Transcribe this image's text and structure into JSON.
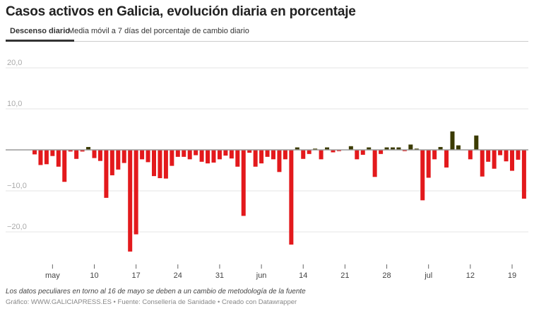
{
  "title": "Casos activos en Galicia, evolución diaria en porcentaje",
  "tabs": [
    {
      "label": "Descenso diario",
      "active": true
    },
    {
      "label": "Media móvil a 7 días del porcentaje de cambio diario",
      "active": false
    }
  ],
  "note": "Los datos peculiares en torno al 16 de mayo se deben a un cambio de metodología de la fuente",
  "footer": "Gráfico: WWW.GALICIAPRESS.ES • Fuente: Consellería de Sanidade • Creado con Datawrapper",
  "colors": {
    "negative": "#e3191c",
    "positive": "#3b3b00",
    "grid": "#e6e6e6",
    "zero": "#999999"
  },
  "chart_data": {
    "type": "bar",
    "title": "Casos activos en Galicia, evolución diaria en porcentaje",
    "ylim": [
      -26.5,
      22
    ],
    "grid": true,
    "y_ticks": [
      {
        "value": 20,
        "label": "20,0"
      },
      {
        "value": 10,
        "label": "10,0"
      },
      {
        "value": -10,
        "label": "−10,0"
      },
      {
        "value": -20,
        "label": "−20,0"
      }
    ],
    "x_ticks": [
      {
        "date": "2020-05-03",
        "label": "may"
      },
      {
        "date": "2020-05-10",
        "label": "10"
      },
      {
        "date": "2020-05-17",
        "label": "17"
      },
      {
        "date": "2020-05-24",
        "label": "24"
      },
      {
        "date": "2020-05-31",
        "label": "31"
      },
      {
        "date": "2020-06-07",
        "label": "jun"
      },
      {
        "date": "2020-06-14",
        "label": "14"
      },
      {
        "date": "2020-06-21",
        "label": "21"
      },
      {
        "date": "2020-06-28",
        "label": "28"
      },
      {
        "date": "2020-07-05",
        "label": "jul"
      },
      {
        "date": "2020-07-12",
        "label": "12"
      },
      {
        "date": "2020-07-19",
        "label": "19"
      }
    ],
    "x_start": "2020-04-30",
    "x_end": "2020-07-21",
    "values": [
      -1.1,
      -3.7,
      -3.5,
      -1.5,
      -4.1,
      -7.8,
      -0.4,
      -2.2,
      -0.4,
      0.7,
      -2.0,
      -2.7,
      -11.7,
      -6.2,
      -4.8,
      -3.2,
      -24.8,
      -20.6,
      -2.3,
      -3.0,
      -6.4,
      -6.9,
      -7.0,
      -3.9,
      -1.7,
      -1.7,
      -2.3,
      -1.3,
      -2.9,
      -3.3,
      -3.1,
      -2.3,
      -1.4,
      -2.1,
      -4.1,
      -16.1,
      -0.7,
      -4.1,
      -3.3,
      -1.7,
      -2.3,
      -5.4,
      -2.3,
      -23.1,
      0.6,
      -2.2,
      -1.0,
      0.3,
      -2.3,
      0.6,
      -0.6,
      -0.3,
      0.0,
      0.9,
      -2.3,
      -1.2,
      0.6,
      -6.6,
      -1.0,
      0.6,
      0.6,
      0.6,
      -0.3,
      1.3,
      0.3,
      -12.3,
      -6.8,
      -2.3,
      0.7,
      -4.3,
      4.5,
      1.1,
      0.0,
      -2.3,
      3.5,
      -6.5,
      -2.9,
      -4.6,
      -1.3,
      -2.8,
      -5.1,
      -2.4,
      -11.9
    ]
  }
}
